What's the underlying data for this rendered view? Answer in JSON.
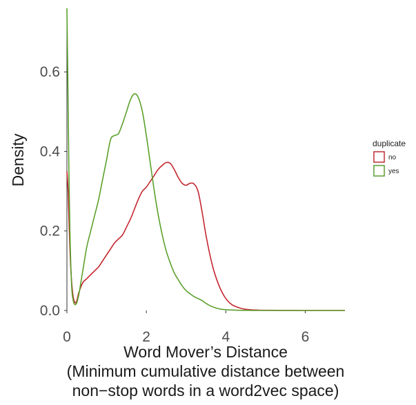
{
  "chart_data": {
    "type": "line",
    "xlabel_lines": [
      "Word Mover’s Distance",
      "(Minimum cumulative distance between",
      "non−stop words in a word2vec space)"
    ],
    "ylabel": "Density",
    "xlim": [
      0,
      7
    ],
    "ylim": [
      0,
      0.76
    ],
    "x_ticks": [
      0,
      2,
      4,
      6
    ],
    "x_tick_labels": [
      "0",
      "2",
      "4",
      "6"
    ],
    "y_ticks": [
      0.0,
      0.2,
      0.4,
      0.6
    ],
    "y_tick_labels": [
      "0.0",
      "0.2",
      "0.4",
      "0.6"
    ],
    "grid": false,
    "legend": {
      "title": "duplicate",
      "position": "right"
    },
    "series": [
      {
        "name": "no",
        "color": "#c4262e",
        "x": [
          0,
          0.03,
          0.06,
          0.1,
          0.15,
          0.2,
          0.25,
          0.3,
          0.4,
          0.5,
          0.6,
          0.7,
          0.8,
          0.9,
          1.0,
          1.1,
          1.2,
          1.3,
          1.4,
          1.5,
          1.6,
          1.7,
          1.8,
          1.9,
          2.0,
          2.1,
          2.2,
          2.3,
          2.4,
          2.5,
          2.6,
          2.7,
          2.8,
          2.9,
          3.0,
          3.1,
          3.2,
          3.3,
          3.4,
          3.5,
          3.6,
          3.7,
          3.8,
          3.9,
          4.0,
          4.1,
          4.2,
          4.4,
          4.6,
          4.8,
          5.0,
          5.5,
          6.0,
          7.0
        ],
        "y": [
          0.35,
          0.3,
          0.2,
          0.1,
          0.04,
          0.02,
          0.025,
          0.045,
          0.07,
          0.08,
          0.09,
          0.1,
          0.11,
          0.125,
          0.14,
          0.155,
          0.17,
          0.18,
          0.19,
          0.21,
          0.23,
          0.255,
          0.28,
          0.3,
          0.31,
          0.325,
          0.34,
          0.355,
          0.365,
          0.372,
          0.37,
          0.355,
          0.335,
          0.32,
          0.315,
          0.32,
          0.318,
          0.3,
          0.25,
          0.19,
          0.14,
          0.1,
          0.07,
          0.047,
          0.03,
          0.019,
          0.012,
          0.005,
          0.002,
          0.001,
          0.0005,
          0.0002,
          0.0,
          0.0
        ]
      },
      {
        "name": "yes",
        "color": "#5aa02c",
        "x": [
          0,
          0.02,
          0.05,
          0.08,
          0.12,
          0.16,
          0.2,
          0.25,
          0.3,
          0.35,
          0.4,
          0.5,
          0.6,
          0.7,
          0.8,
          0.9,
          1.0,
          1.1,
          1.2,
          1.3,
          1.4,
          1.5,
          1.6,
          1.7,
          1.8,
          1.9,
          2.0,
          2.1,
          2.2,
          2.3,
          2.4,
          2.5,
          2.6,
          2.7,
          2.8,
          2.9,
          3.0,
          3.1,
          3.2,
          3.3,
          3.4,
          3.5,
          3.6,
          3.7,
          3.8,
          3.9,
          4.0,
          4.2,
          4.5,
          5.0,
          7.0
        ],
        "y": [
          0.76,
          0.6,
          0.35,
          0.18,
          0.06,
          0.025,
          0.015,
          0.02,
          0.04,
          0.07,
          0.1,
          0.16,
          0.2,
          0.24,
          0.28,
          0.33,
          0.38,
          0.43,
          0.44,
          0.445,
          0.47,
          0.5,
          0.53,
          0.545,
          0.535,
          0.5,
          0.44,
          0.37,
          0.3,
          0.24,
          0.19,
          0.15,
          0.12,
          0.095,
          0.078,
          0.062,
          0.05,
          0.042,
          0.035,
          0.03,
          0.025,
          0.018,
          0.012,
          0.008,
          0.005,
          0.003,
          0.002,
          0.001,
          0.0004,
          0.0,
          0.0
        ]
      }
    ]
  }
}
